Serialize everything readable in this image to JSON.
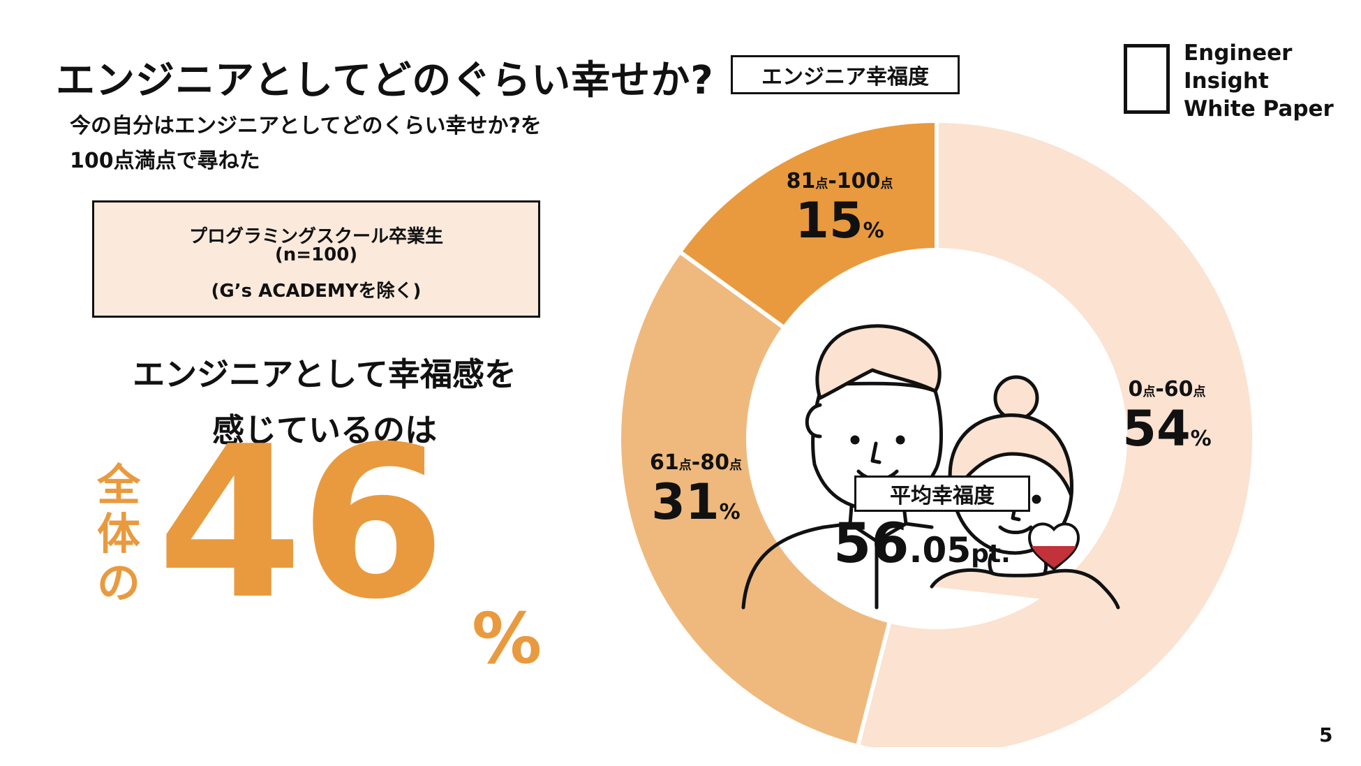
{
  "header": {
    "title": "エンジニアとしてどのぐらい幸せか?",
    "tag": "エンジニア幸福度"
  },
  "logo": {
    "line1": "Engineer",
    "line2": "Insight",
    "line3": "White Paper"
  },
  "subtitle": {
    "line1": "今の自分はエンジニアとしてどのくらい幸せか?を",
    "line2": "100点満点で尋ねた"
  },
  "sample": {
    "line1": "プログラミングスクール卒業生",
    "line2": "(n=100)",
    "line3": "(G’s ACADEMYを除く)"
  },
  "headline": {
    "line1": "エンジニアとして幸福感を",
    "line2": "感じているのは",
    "zentai": "全体の",
    "big_value": "46",
    "big_unit": "%"
  },
  "average": {
    "label": "平均幸福度",
    "value_int": "56",
    "value_dec": ".05",
    "unit": "pt."
  },
  "page_number": "5",
  "colors": {
    "accent": "#e99a3e",
    "seg_high": "#e99a3e",
    "seg_mid": "#efb97d",
    "seg_low": "#fbe2d1"
  },
  "chart_data": {
    "type": "pie",
    "categories": [
      "0点-60点",
      "61点-80点",
      "81点-100点"
    ],
    "values": [
      54,
      31,
      15
    ],
    "unit": "%",
    "donut": true,
    "labels": [
      {
        "range_lo": "0",
        "range_hi": "60",
        "unit_pt": "点",
        "value": "54",
        "unit": "%"
      },
      {
        "range_lo": "61",
        "range_hi": "80",
        "unit_pt": "点",
        "value": "31",
        "unit": "%"
      },
      {
        "range_lo": "81",
        "range_hi": "100",
        "unit_pt": "点",
        "value": "15",
        "unit": "%"
      }
    ]
  }
}
